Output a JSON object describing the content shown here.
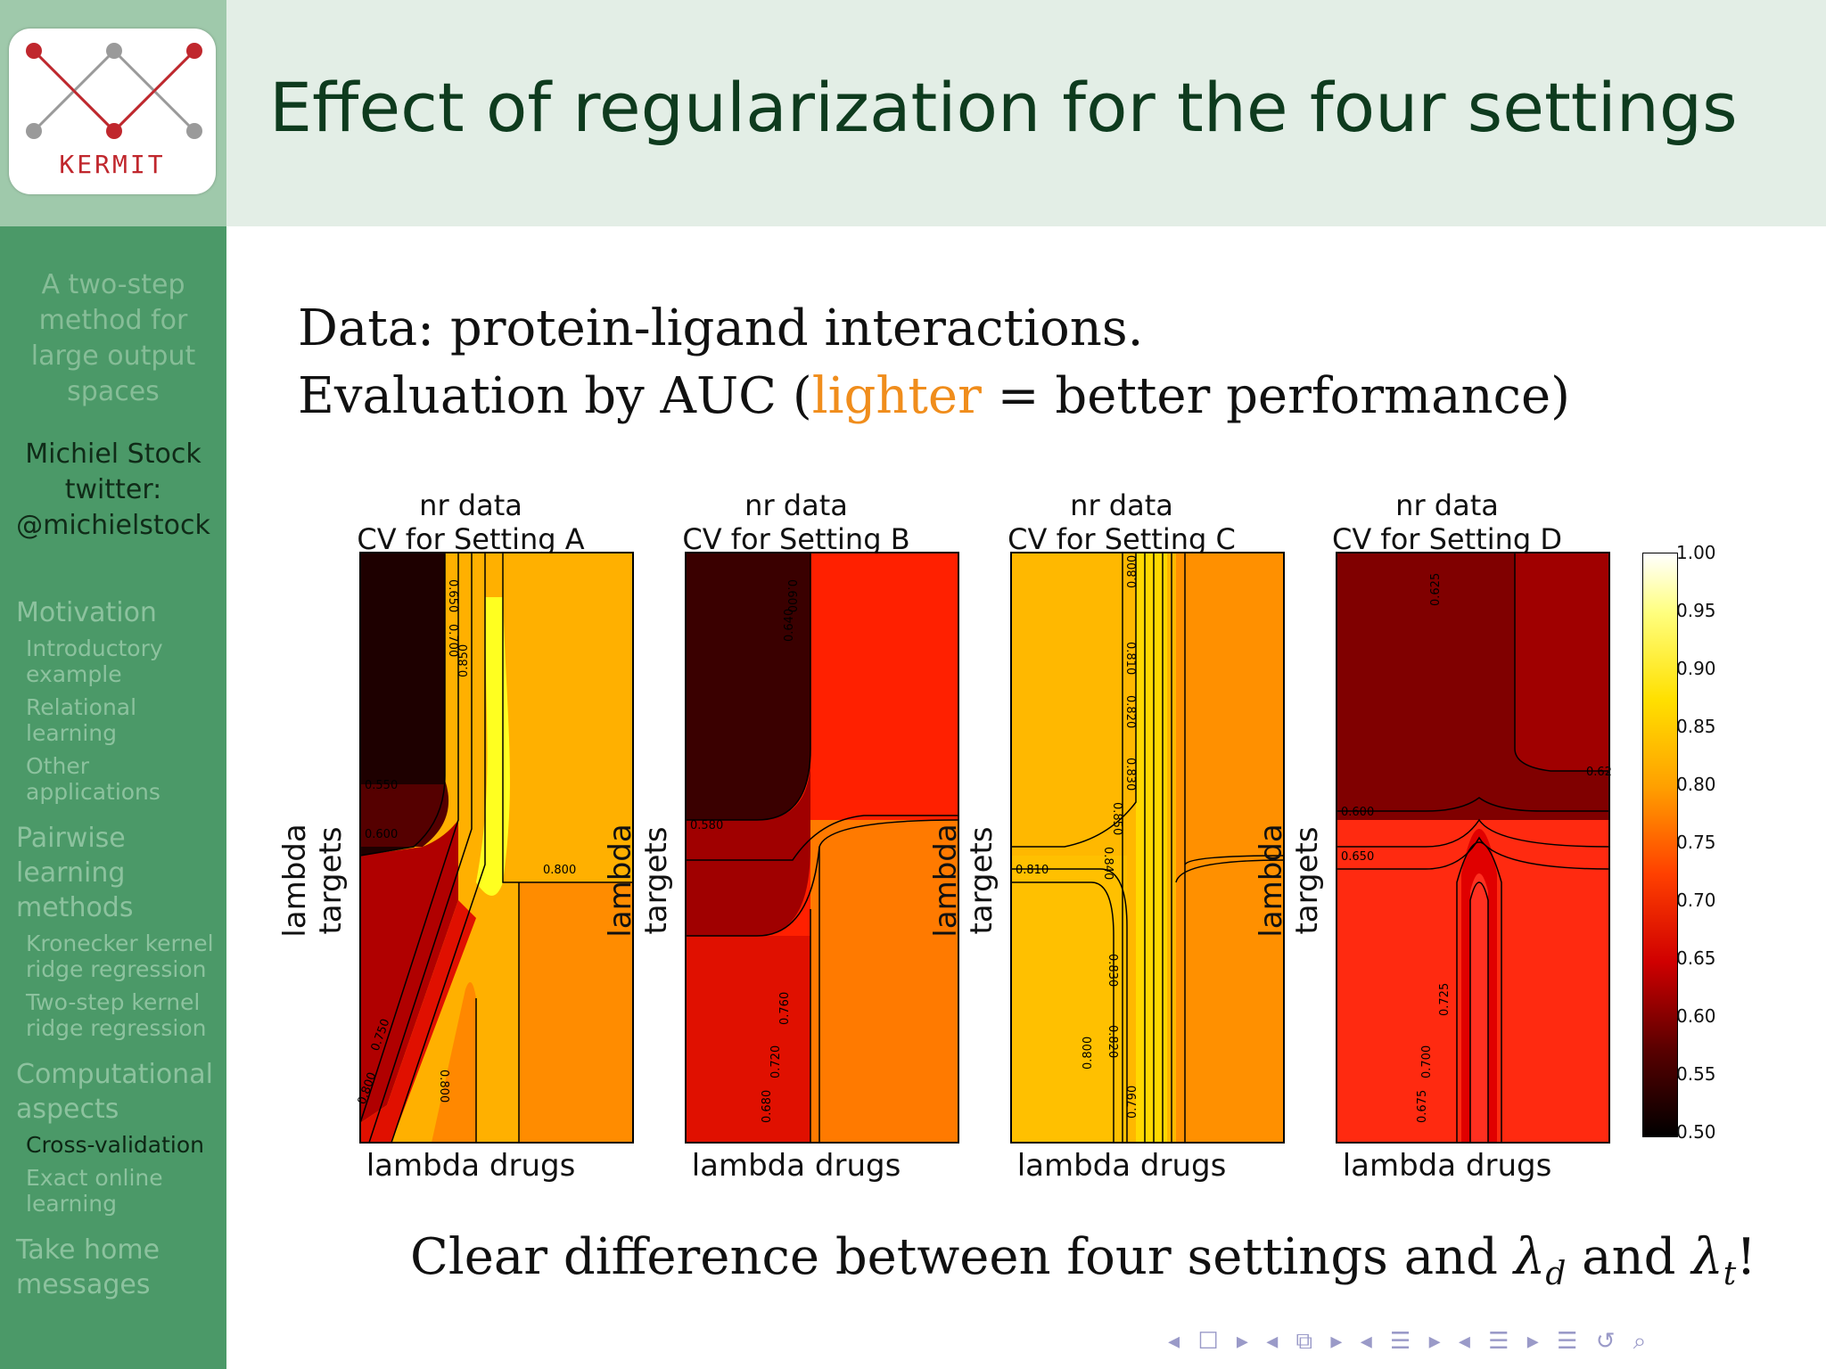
{
  "logo": {
    "text": "KERMIT"
  },
  "sidebar": {
    "title_lines": [
      "A two-step",
      "method for",
      "large output",
      "spaces"
    ],
    "author_lines": [
      "Michiel Stock",
      "twitter:",
      "@michielstock"
    ],
    "sections": [
      {
        "label": "Motivation",
        "items": [
          "Introductory example",
          "Relational learning",
          "Other applications"
        ]
      },
      {
        "label": "Pairwise learning methods",
        "items": [
          "Kronecker kernel ridge regression",
          "Two-step kernel ridge regression"
        ]
      },
      {
        "label": "Computational aspects",
        "items": [
          "Cross-validation",
          "Exact online learning"
        ]
      },
      {
        "label": "Take home messages",
        "items": []
      }
    ],
    "active_item": "Cross-validation"
  },
  "slide": {
    "title": "Effect of regularization for the four settings",
    "line1": "Data:  protein-ligand interactions.",
    "line2_pre": "Evaluation by AUC (",
    "line2_highlight": "lighter",
    "line2_post": " = better performance)",
    "conclusion_pre": "Clear difference between four settings and ",
    "conclusion_post": "!"
  },
  "colors": {
    "highlight": "#f08d1c",
    "title": "#0e3b1e",
    "sidebar": "#4b9968"
  },
  "chart_data": {
    "type": "heatmap",
    "panels": [
      {
        "title1": "nr data",
        "title2": "CV for Setting A",
        "xlabel": "lambda drugs",
        "ylabel": "lambda targets",
        "contour_labels": [
          "0.650",
          "0.700",
          "0.850",
          "0.550",
          "0.600",
          "0.800",
          "0.750",
          "0.800",
          "0.800"
        ]
      },
      {
        "title1": "nr data",
        "title2": "CV for Setting B",
        "xlabel": "lambda drugs",
        "ylabel": "lambda targets",
        "contour_labels": [
          "0.600",
          "0.640",
          "0.580",
          "0.760",
          "0.720",
          "0.680"
        ]
      },
      {
        "title1": "nr data",
        "title2": "CV for Setting C",
        "xlabel": "lambda drugs",
        "ylabel": "lambda targets",
        "contour_labels": [
          "0.800",
          "0.810",
          "0.820",
          "0.830",
          "0.850",
          "0.840",
          "0.810",
          "0.830",
          "0.820",
          "0.800",
          "0.790"
        ]
      },
      {
        "title1": "nr data",
        "title2": "CV for Setting D",
        "xlabel": "lambda drugs",
        "ylabel": "lambda targets",
        "contour_labels": [
          "0.625",
          "0.62",
          "0.600",
          "0.650",
          "0.725",
          "0.700",
          "0.675"
        ]
      }
    ],
    "colorbar": {
      "ticks": [
        "1.00",
        "0.95",
        "0.90",
        "0.85",
        "0.80",
        "0.75",
        "0.70",
        "0.65",
        "0.60",
        "0.55",
        "0.50"
      ],
      "range": [
        0.5,
        1.0
      ]
    }
  }
}
